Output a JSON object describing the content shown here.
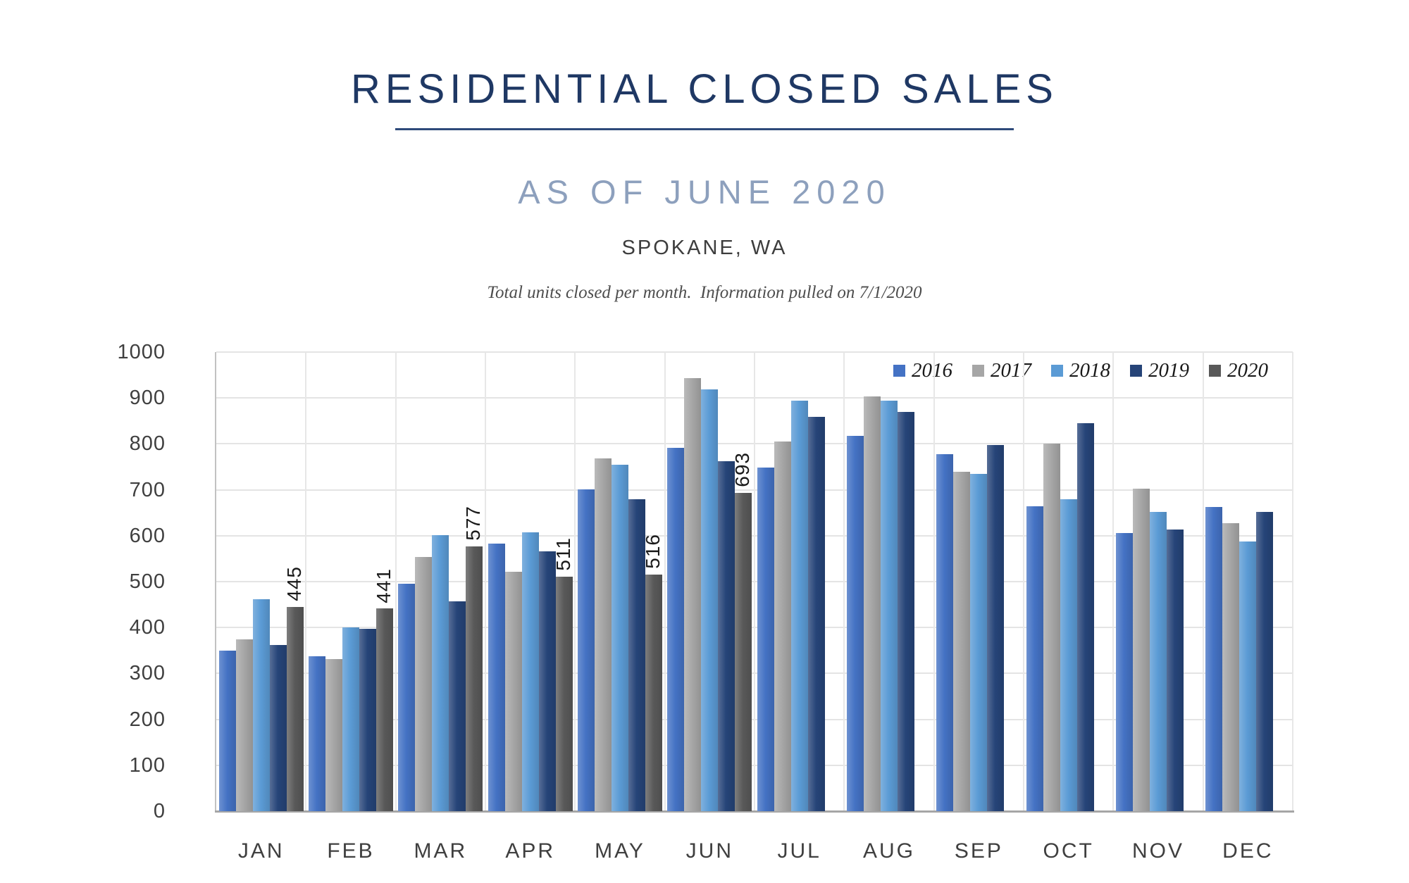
{
  "header": {
    "title": "RESIDENTIAL CLOSED SALES",
    "subtitle": "AS OF JUNE 2020",
    "location": "SPOKANE, WA",
    "note": "Total units closed per month.  Information pulled on 7/1/2020"
  },
  "chart_data": {
    "type": "bar",
    "title": "Residential closed sales by month and year",
    "categories": [
      "JAN",
      "FEB",
      "MAR",
      "APR",
      "MAY",
      "JUN",
      "JUL",
      "AUG",
      "SEP",
      "OCT",
      "NOV",
      "DEC"
    ],
    "series": [
      {
        "name": "2016",
        "color": "#4472C4",
        "values": [
          349,
          337,
          495,
          583,
          701,
          791,
          748,
          818,
          778,
          664,
          606,
          662
        ]
      },
      {
        "name": "2017",
        "color": "#A6A6A6",
        "values": [
          374,
          331,
          553,
          521,
          768,
          943,
          805,
          903,
          740,
          800,
          703,
          627
        ]
      },
      {
        "name": "2018",
        "color": "#5B9BD5",
        "values": [
          462,
          401,
          601,
          607,
          755,
          918,
          894,
          894,
          734,
          679,
          652,
          588
        ]
      },
      {
        "name": "2019",
        "color": "#264478",
        "values": [
          362,
          398,
          457,
          566,
          679,
          762,
          859,
          869,
          797,
          845,
          613,
          652
        ]
      },
      {
        "name": "2020",
        "color": "#595959",
        "values": [
          445,
          441,
          577,
          511,
          516,
          693,
          null,
          null,
          null,
          null,
          null,
          null
        ],
        "data_labels": true
      }
    ],
    "xlabel": "",
    "ylabel": "",
    "ylim": [
      0,
      1000
    ],
    "ytick_step": 100,
    "grid": true,
    "legend_position": "top-right"
  }
}
